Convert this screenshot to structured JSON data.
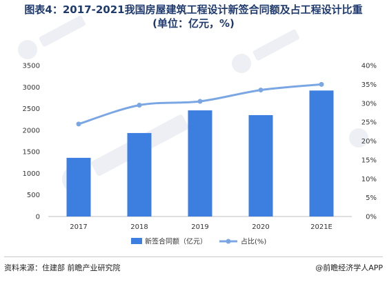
{
  "title_line1": "图表4：2017-2021我国房屋建筑工程设计新签合同额及占工程设计比重",
  "title_line2": "(单位：亿元，%)",
  "source": "资料来源：住建部 前瞻产业研究院",
  "brand": "@前瞻经济学人APP",
  "chart_data": {
    "type": "bar",
    "categories": [
      "2017",
      "2018",
      "2019",
      "2020",
      "2021E"
    ],
    "series": [
      {
        "name": "新签合同额（亿元）",
        "type": "bar",
        "axis": "left",
        "color": "#3d7fe0",
        "values": [
          1360,
          1935,
          2460,
          2350,
          2920
        ]
      },
      {
        "name": "占比(%)",
        "type": "line",
        "axis": "right",
        "color": "#7aa6e3",
        "values": [
          24.5,
          29.5,
          30.5,
          33.5,
          35.0
        ]
      }
    ],
    "y_left": {
      "min": 0,
      "max": 3500,
      "step": 500,
      "ticks": [
        "0",
        "500",
        "1000",
        "1500",
        "2000",
        "2500",
        "3000",
        "3500"
      ]
    },
    "y_right": {
      "min": 0,
      "max": 40,
      "step": 5,
      "ticks": [
        "0%",
        "5%",
        "10%",
        "15%",
        "20%",
        "25%",
        "30%",
        "35%",
        "40%"
      ]
    },
    "grid": false,
    "legend": "bottom"
  }
}
